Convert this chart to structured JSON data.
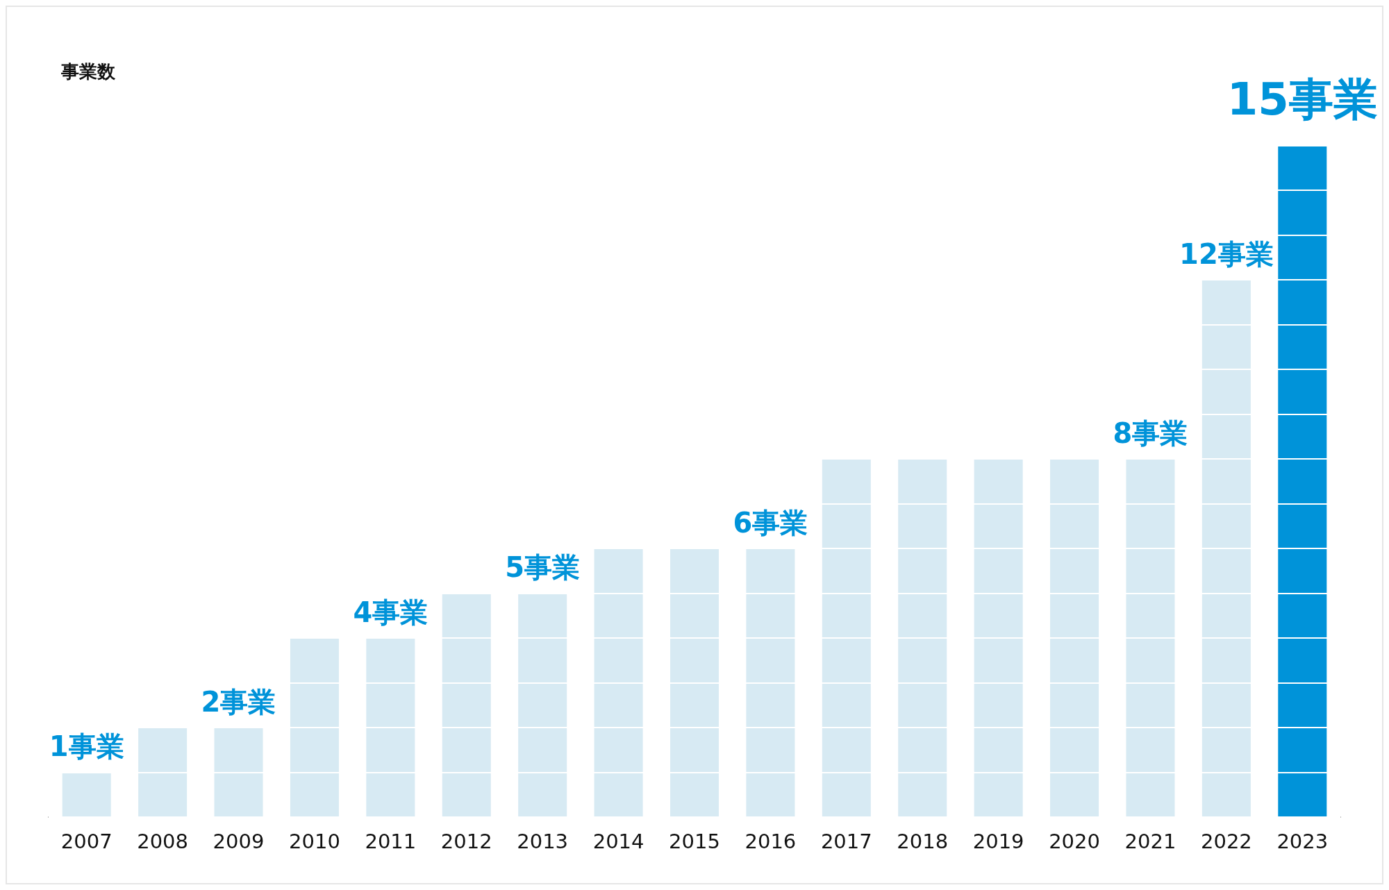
{
  "chart_data": {
    "type": "bar",
    "ylabel": "事業数",
    "categories": [
      "2007",
      "2008",
      "2009",
      "2010",
      "2011",
      "2012",
      "2013",
      "2014",
      "2015",
      "2016",
      "2017",
      "2018",
      "2019",
      "2020",
      "2021",
      "2022",
      "2023"
    ],
    "values": [
      1,
      2,
      2,
      4,
      4,
      5,
      5,
      6,
      6,
      6,
      8,
      8,
      8,
      8,
      8,
      12,
      15
    ],
    "colors": [
      "#d7eaf3",
      "#d7eaf3",
      "#d7eaf3",
      "#d7eaf3",
      "#d7eaf3",
      "#d7eaf3",
      "#d7eaf3",
      "#d7eaf3",
      "#d7eaf3",
      "#d7eaf3",
      "#d7eaf3",
      "#d7eaf3",
      "#d7eaf3",
      "#d7eaf3",
      "#d7eaf3",
      "#d7eaf3",
      "#0093d9"
    ],
    "value_labels": [
      "1事業",
      null,
      "2事業",
      null,
      "4事業",
      null,
      "5事業",
      null,
      null,
      "6事業",
      null,
      null,
      null,
      null,
      "8事業",
      "12事業",
      "15事業"
    ],
    "ylim": [
      0,
      15
    ],
    "yticks": [
      0,
      1,
      2,
      3,
      4,
      5,
      6,
      7,
      8,
      9,
      10,
      11,
      12,
      13,
      14,
      15
    ],
    "grid": "y",
    "tick_labels": "x",
    "legend": false
  }
}
